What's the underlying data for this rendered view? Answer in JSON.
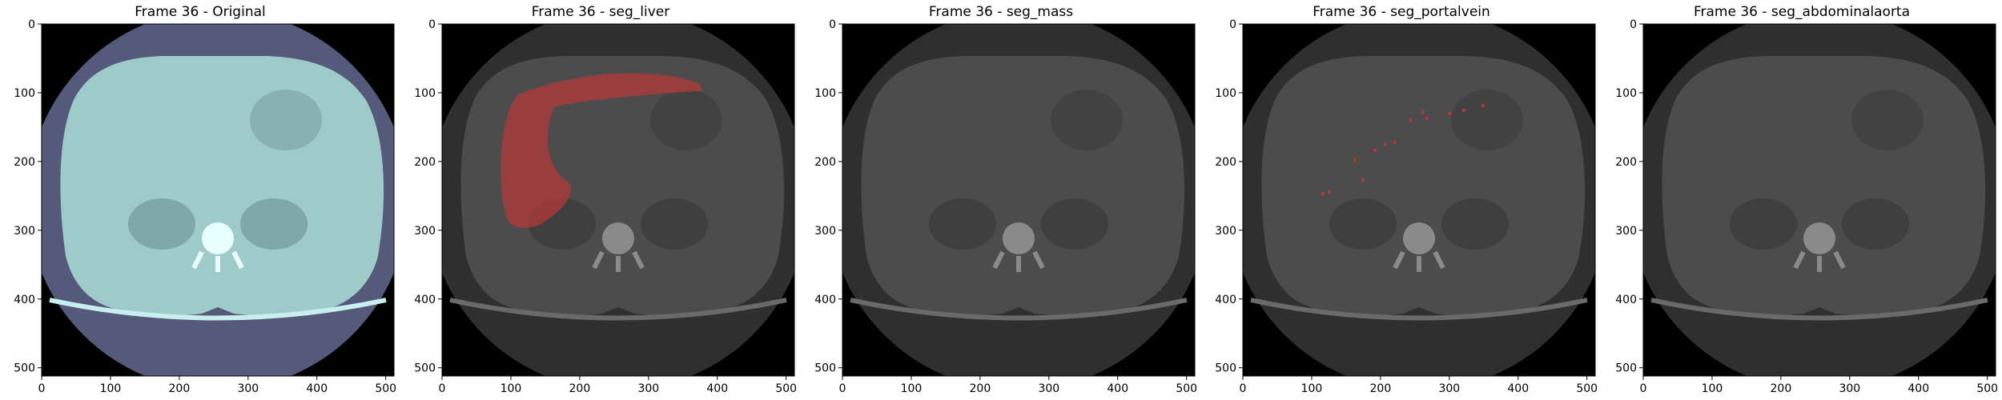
{
  "figure": {
    "panels": [
      {
        "title": "Frame 36 - Original",
        "style": "original",
        "overlay": "none"
      },
      {
        "title": "Frame 36 - seg_liver",
        "style": "gray",
        "overlay": "liver"
      },
      {
        "title": "Frame 36 - seg_mass",
        "style": "gray",
        "overlay": "none"
      },
      {
        "title": "Frame 36 - seg_portalvein",
        "style": "gray",
        "overlay": "portalvein"
      },
      {
        "title": "Frame 36 - seg_abdominalaorta",
        "style": "gray",
        "overlay": "none"
      }
    ],
    "x_ticks": [
      "0",
      "100",
      "200",
      "300",
      "400",
      "500"
    ],
    "y_ticks": [
      "0",
      "100",
      "200",
      "300",
      "400",
      "500"
    ],
    "x_tick_values": [
      0,
      100,
      200,
      300,
      400,
      500
    ],
    "y_tick_values": [
      0,
      100,
      200,
      300,
      400,
      500
    ],
    "image_extent": [
      0,
      512
    ],
    "colors": {
      "original_body": "#9fcaca",
      "original_halo": "#55597a",
      "gray_body": "#4c4c4c",
      "gray_halo": "#2f2f2f",
      "background": "#000000",
      "mask_red": "#b23a3a"
    }
  }
}
